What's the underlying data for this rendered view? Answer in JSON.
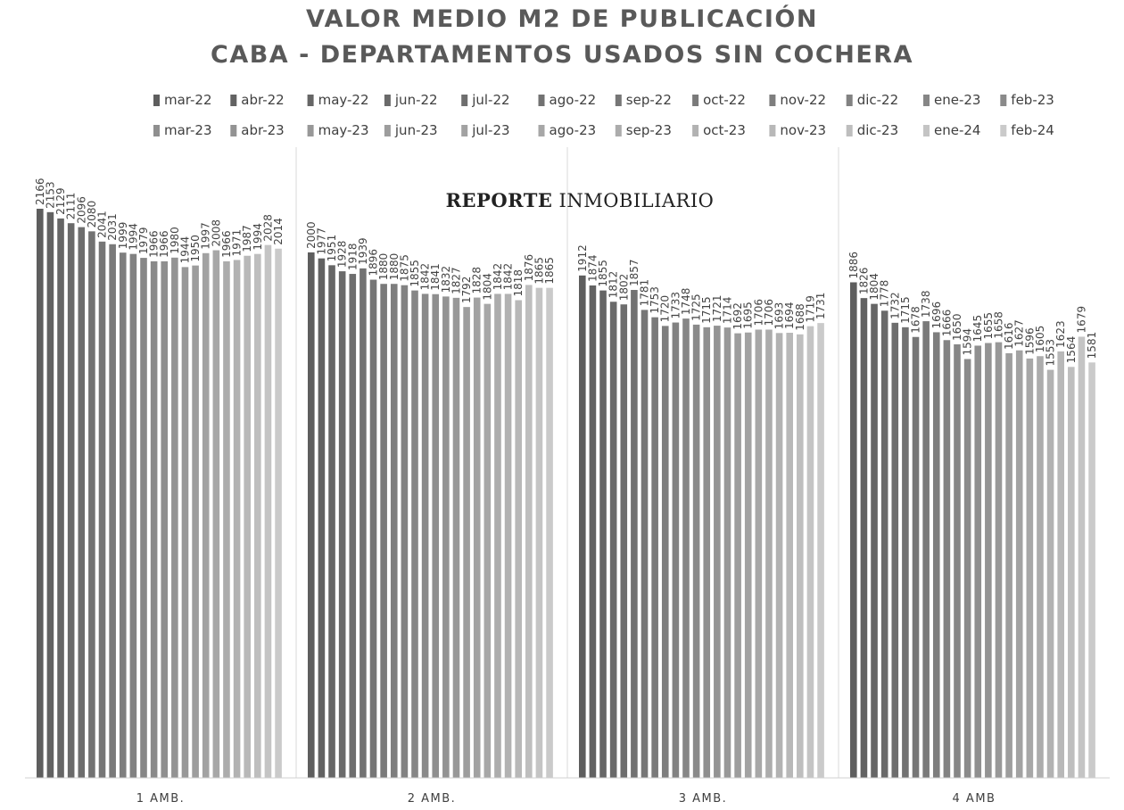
{
  "chart_data": {
    "type": "bar",
    "title_lines": [
      "VALOR MEDIO M2 DE PUBLICACIÓN",
      "CABA - DEPARTAMENTOS USADOS SIN COCHERA"
    ],
    "watermark": {
      "bold": "REPORTE",
      "regular": " INMOBILIARIO"
    },
    "categories": [
      "1 AMB.",
      "2 AMB.",
      "3 AMB.",
      "4 AMB"
    ],
    "legend_position": "top",
    "grid": false,
    "ylim": [
      0,
      2300
    ],
    "series": [
      {
        "name": "mar-22",
        "color": "#5e5e5e",
        "values": [
          2166,
          2000,
          1912,
          1886
        ]
      },
      {
        "name": "abr-22",
        "color": "#626262",
        "values": [
          2153,
          1977,
          1874,
          1826
        ]
      },
      {
        "name": "may-22",
        "color": "#666666",
        "values": [
          2129,
          1951,
          1855,
          1804
        ]
      },
      {
        "name": "jun-22",
        "color": "#6a6a6a",
        "values": [
          2111,
          1928,
          1812,
          1778
        ]
      },
      {
        "name": "jul-22",
        "color": "#6e6e6e",
        "values": [
          2096,
          1918,
          1802,
          1732
        ]
      },
      {
        "name": "ago-22",
        "color": "#727272",
        "values": [
          2080,
          1939,
          1857,
          1715
        ]
      },
      {
        "name": "sep-22",
        "color": "#767676",
        "values": [
          2041,
          1896,
          1781,
          1678
        ]
      },
      {
        "name": "oct-22",
        "color": "#7a7a7a",
        "values": [
          2031,
          1880,
          1753,
          1738
        ]
      },
      {
        "name": "nov-22",
        "color": "#7e7e7e",
        "values": [
          1999,
          1880,
          1720,
          1696
        ]
      },
      {
        "name": "dic-22",
        "color": "#828282",
        "values": [
          1994,
          1875,
          1733,
          1666
        ]
      },
      {
        "name": "ene-23",
        "color": "#868686",
        "values": [
          1979,
          1855,
          1748,
          1650
        ]
      },
      {
        "name": "feb-23",
        "color": "#8a8a8a",
        "values": [
          1966,
          1842,
          1725,
          1594
        ]
      },
      {
        "name": "mar-23",
        "color": "#8f8f8f",
        "values": [
          1966,
          1841,
          1715,
          1645
        ]
      },
      {
        "name": "abr-23",
        "color": "#939393",
        "values": [
          1980,
          1832,
          1721,
          1655
        ]
      },
      {
        "name": "may-23",
        "color": "#989898",
        "values": [
          1944,
          1827,
          1714,
          1658
        ]
      },
      {
        "name": "jun-23",
        "color": "#9d9d9d",
        "values": [
          1950,
          1792,
          1692,
          1616
        ]
      },
      {
        "name": "jul-23",
        "color": "#a2a2a2",
        "values": [
          1997,
          1828,
          1695,
          1627
        ]
      },
      {
        "name": "ago-23",
        "color": "#a7a7a7",
        "values": [
          2008,
          1804,
          1706,
          1596
        ]
      },
      {
        "name": "sep-23",
        "color": "#acacac",
        "values": [
          1966,
          1842,
          1706,
          1605
        ]
      },
      {
        "name": "oct-23",
        "color": "#b2b2b2",
        "values": [
          1971,
          1842,
          1693,
          1553
        ]
      },
      {
        "name": "nov-23",
        "color": "#b8b8b8",
        "values": [
          1987,
          1818,
          1694,
          1623
        ]
      },
      {
        "name": "dic-23",
        "color": "#bebebe",
        "values": [
          1994,
          1876,
          1688,
          1564
        ]
      },
      {
        "name": "ene-24",
        "color": "#c4c4c4",
        "values": [
          2028,
          1865,
          1719,
          1679
        ]
      },
      {
        "name": "feb-24",
        "color": "#cacaca",
        "values": [
          2014,
          1865,
          1731,
          1581
        ]
      }
    ]
  }
}
